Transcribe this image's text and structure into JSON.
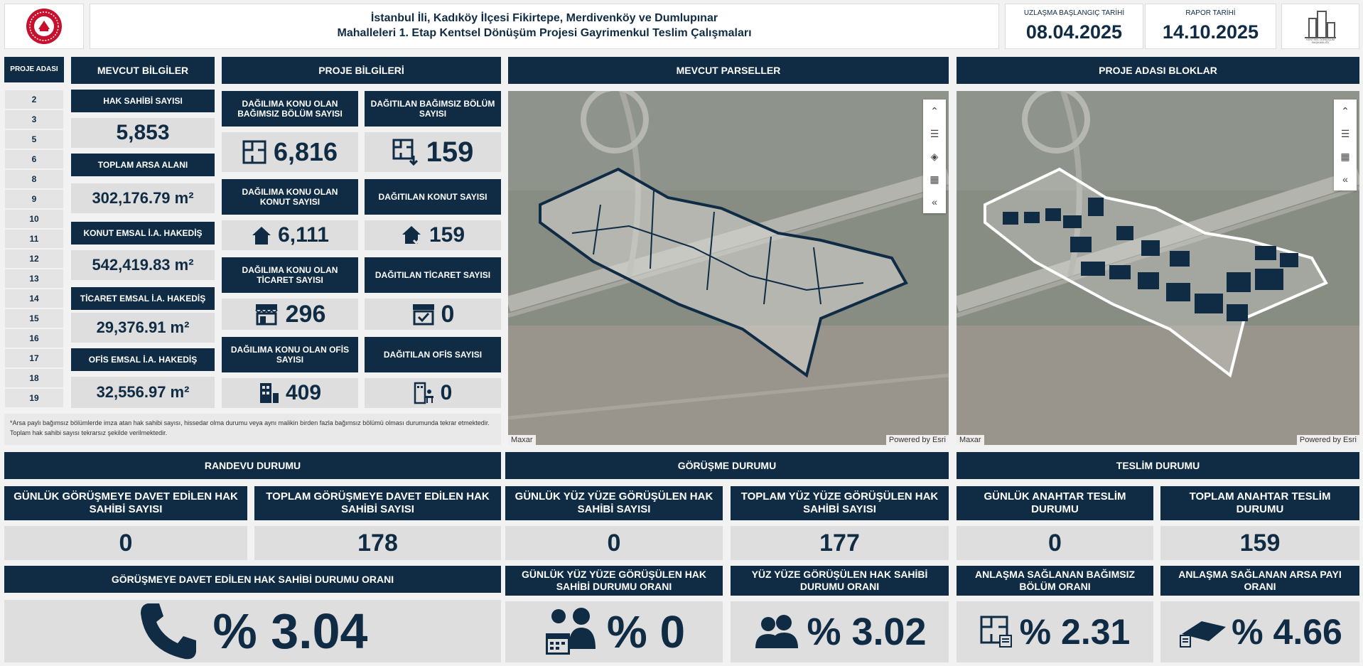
{
  "header": {
    "title_line1": "İstanbul İli, Kadıköy İlçesi Fikirtepe, Merdivenköy ve Dumlupınar",
    "title_line2": "Mahalleleri 1. Etap Kentsel Dönüşüm Projesi Gayrimenkul Teslim Çalışmaları",
    "start_date_label": "UZLAŞMA BAŞLANGIÇ TARİHİ",
    "start_date": "08.04.2025",
    "report_date_label": "RAPOR TARİHİ",
    "report_date": "14.10.2025",
    "logo_caption": "KENTSEL DÖNÜŞÜM BAŞKANLIĞI"
  },
  "project_islands": {
    "title": "PROJE ADASI",
    "items": [
      "2",
      "3",
      "5",
      "6",
      "8",
      "9",
      "10",
      "11",
      "12",
      "13",
      "14",
      "15",
      "16",
      "17",
      "18",
      "19"
    ]
  },
  "current_info": {
    "title": "MEVCUT BİLGİLER",
    "owner_label": "HAK SAHİBİ SAYISI",
    "owner_value": "5,853",
    "land_label": "TOPLAM ARSA ALANI",
    "land_value": "302,176.79 m²",
    "housing_label": "KONUT EMSAL İ.A. HAKEDİŞ",
    "housing_value": "542,419.83 m²",
    "commerce_label": "TİCARET EMSAL İ.A. HAKEDİŞ",
    "commerce_value": "29,376.91 m²",
    "office_label": "OFİS EMSAL İ.A. HAKEDİŞ",
    "office_value": "32,556.97 m²"
  },
  "project_info": {
    "title": "PROJE BİLGİLERİ",
    "units_subject_label": "DAĞILIMA KONU OLAN BAĞIMSIZ BÖLÜM SAYISI",
    "units_subject_value": "6,816",
    "units_dist_label": "DAĞITILAN BAĞIMSIZ BÖLÜM SAYISI",
    "units_dist_value": "159",
    "housing_subject_label": "DAĞILIMA KONU OLAN KONUT SAYISI",
    "housing_subject_value": "6,111",
    "housing_dist_label": "DAĞITILAN KONUT SAYISI",
    "housing_dist_value": "159",
    "commerce_subject_label": "DAĞILIMA KONU OLAN TİCARET SAYISI",
    "commerce_subject_value": "296",
    "commerce_dist_label": "DAĞITILAN TİCARET SAYISI",
    "commerce_dist_value": "0",
    "office_subject_label": "DAĞILIMA KONU OLAN OFİS SAYISI",
    "office_subject_value": "409",
    "office_dist_label": "DAĞITILAN OFİS SAYISI",
    "office_dist_value": "0"
  },
  "note": "*Arsa paylı bağımsız bölümlerde imza atan hak sahibi sayısı, hissedar olma durumu veya aynı malikin birden fazla bağımsız bölümü olması durumunda tekrar etmektedir. Toplam hak sahibi sayısı tekrarsız şekilde verilmektedir.",
  "maps": {
    "parcels_title": "MEVCUT PARSELLER",
    "blocks_title": "PROJE ADASI BLOKLAR",
    "credit_left": "Maxar",
    "credit_right": "Powered by Esri"
  },
  "appointment": {
    "title": "RANDEVU DURUMU",
    "daily_label": "GÜNLÜK GÖRÜŞMEYE DAVET EDİLEN HAK SAHİBİ SAYISI",
    "daily_value": "0",
    "total_label": "TOPLAM GÖRÜŞMEYE DAVET EDİLEN HAK SAHİBİ SAYISI",
    "total_value": "178",
    "ratio_label": "GÖRÜŞMEYE DAVET EDİLEN HAK SAHİBİ DURUMU ORANI",
    "ratio_value": "% 3.04"
  },
  "meeting": {
    "title": "GÖRÜŞME DURUMU",
    "daily_label": "GÜNLÜK YÜZ YÜZE GÖRÜŞÜLEN HAK SAHİBİ SAYISI",
    "daily_value": "0",
    "total_label": "TOPLAM YÜZ YÜZE GÖRÜŞÜLEN HAK SAHİBİ SAYISI",
    "total_value": "177",
    "daily_ratio_label": "GÜNLÜK YÜZ YÜZE GÖRÜŞÜLEN HAK SAHİBİ DURUMU ORANI",
    "daily_ratio_value": "% 0",
    "ratio_label": "YÜZ YÜZE GÖRÜŞÜLEN HAK SAHİBİ DURUMU ORANI",
    "ratio_value": "% 3.02"
  },
  "delivery": {
    "title": "TESLİM DURUMU",
    "daily_label": "GÜNLÜK ANAHTAR TESLİM DURUMU",
    "daily_value": "0",
    "total_label": "TOPLAM ANAHTAR TESLİM DURUMU",
    "total_value": "159",
    "unit_ratio_label": "ANLAŞMA SAĞLANAN BAĞIMSIZ BÖLÜM ORANI",
    "unit_ratio_value": "% 2.31",
    "land_ratio_label": "ANLAŞMA SAĞLANAN ARSA PAYI ORANI",
    "land_ratio_value": "% 4.66"
  },
  "colors": {
    "navy": "#0f2c44",
    "grey": "#dedede",
    "background": "#f2f2f2"
  }
}
